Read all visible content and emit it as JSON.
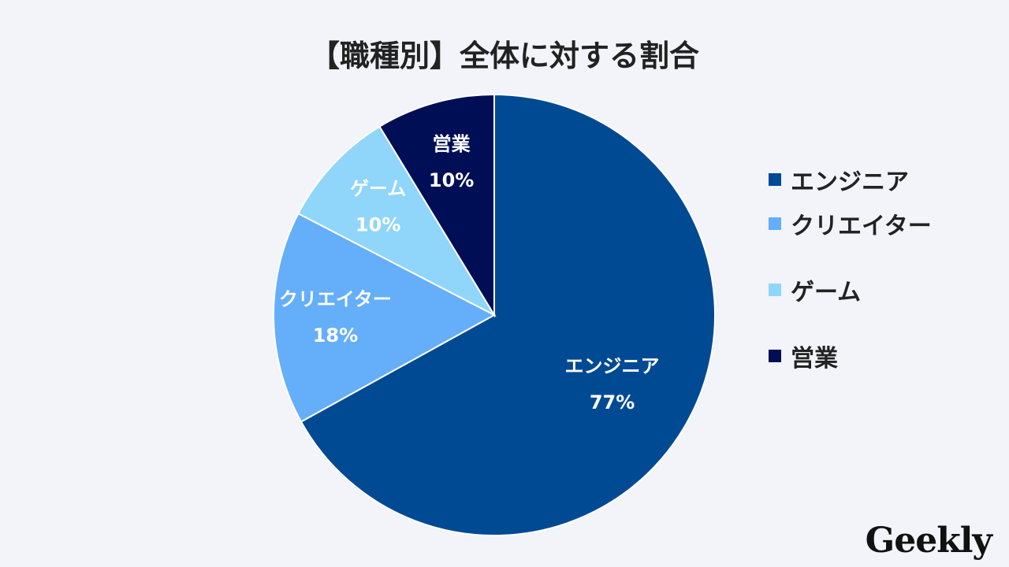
{
  "chart_data": {
    "type": "pie",
    "title": "【職種別】全体に対する割合",
    "categories": [
      "エンジニア",
      "クリエイター",
      "ゲーム",
      "営業"
    ],
    "values": [
      77,
      18,
      10,
      10
    ],
    "labels": [
      "77%",
      "18%",
      "10%",
      "10%"
    ],
    "colors": [
      "#004a94",
      "#64aefa",
      "#90d5fa",
      "#000f55"
    ],
    "start_angle": "top",
    "direction": "clockwise",
    "legend": "right"
  },
  "logo": "Geekly"
}
